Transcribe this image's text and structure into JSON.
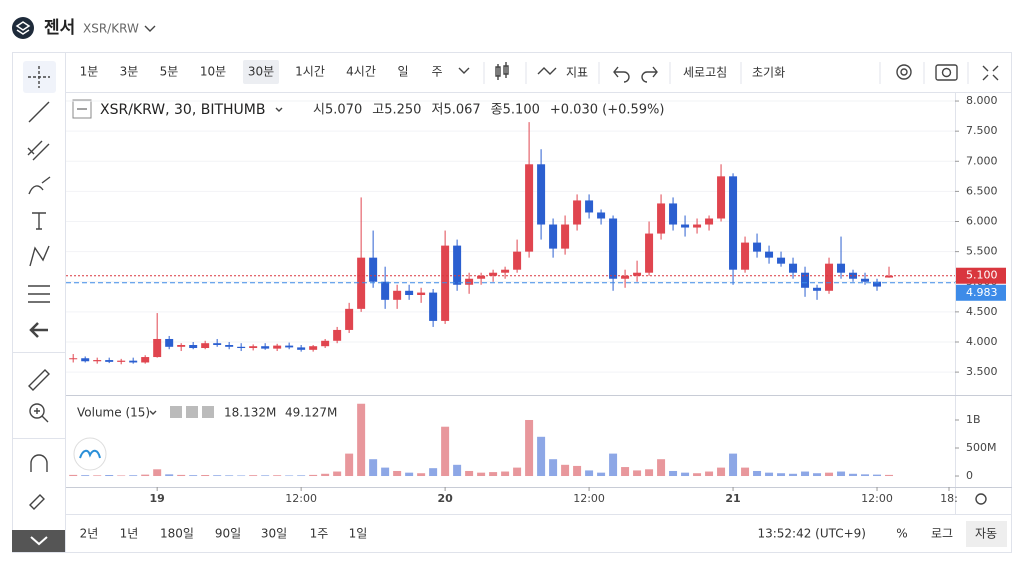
{
  "header": {
    "title": "젠서",
    "pair": "XSR/KRW"
  },
  "toolbar": {
    "intervals": [
      "1분",
      "3분",
      "5분",
      "10분",
      "30분",
      "1시간",
      "4시간",
      "일",
      "주"
    ],
    "selected": 4,
    "indicators": "지표",
    "refresh": "세로고침",
    "reset": "초기화"
  },
  "chart_data": {
    "type": "candlestick",
    "symbol": "XSR/KRW, 30, BITHUMB",
    "ohlc": {
      "open_label": "시",
      "open": 5.07,
      "open_text": "5.070",
      "high_label": "고",
      "high": 5.25,
      "high_text": "5.250",
      "low_label": "저",
      "low": 5.067,
      "low_text": "5.067",
      "close_label": "종",
      "close": 5.1,
      "close_text": "5.100",
      "change": "+0.030 (+0.59%)"
    },
    "up_color": "#e0454f",
    "down_color": "#2b5fd0",
    "volume_up_color": "#e8979c",
    "volume_down_color": "#8da7e6",
    "x": [
      -7,
      -6,
      -5,
      -4,
      -3,
      -2,
      -1,
      0,
      1,
      2,
      3,
      4,
      5,
      6,
      7,
      8,
      9,
      10,
      11,
      12,
      13,
      14,
      15,
      16,
      17,
      18,
      19,
      20,
      21,
      22,
      23,
      24,
      25,
      26,
      27,
      28,
      29,
      30,
      31,
      32,
      33,
      34,
      35,
      36,
      37,
      38,
      39,
      40,
      41,
      42,
      43,
      44,
      45,
      46,
      47,
      48,
      49,
      50,
      51,
      52,
      53,
      54,
      55,
      56,
      57,
      58,
      59,
      60,
      61
    ],
    "open": [
      3.72,
      3.73,
      3.68,
      3.7,
      3.67,
      3.69,
      3.66,
      3.75,
      4.05,
      3.92,
      3.95,
      3.9,
      3.98,
      3.95,
      3.92,
      3.9,
      3.93,
      3.89,
      3.94,
      3.91,
      3.87,
      3.93,
      4.02,
      4.2,
      4.55,
      5.4,
      5.0,
      4.7,
      4.85,
      4.78,
      4.82,
      4.35,
      5.6,
      4.95,
      5.05,
      5.1,
      5.15,
      5.2,
      5.5,
      6.95,
      5.95,
      5.55,
      5.95,
      6.35,
      6.15,
      6.05,
      5.05,
      5.1,
      5.15,
      5.8,
      6.3,
      5.95,
      5.9,
      5.95,
      6.05,
      6.75,
      5.2,
      5.65,
      5.5,
      5.4,
      5.3,
      5.15,
      4.9,
      4.85,
      5.3,
      5.15,
      5.05,
      5.0,
      5.07
    ],
    "high": [
      3.8,
      3.76,
      3.74,
      3.74,
      3.72,
      3.74,
      3.78,
      4.48,
      4.1,
      3.98,
      4.0,
      4.02,
      4.05,
      4.0,
      3.98,
      3.96,
      3.98,
      3.97,
      3.99,
      3.95,
      3.95,
      4.05,
      4.25,
      4.65,
      6.4,
      5.85,
      5.25,
      4.95,
      4.95,
      4.9,
      4.88,
      5.85,
      5.7,
      5.15,
      5.15,
      5.2,
      5.25,
      5.7,
      7.65,
      7.2,
      6.05,
      6.1,
      6.45,
      6.45,
      6.2,
      6.1,
      5.2,
      5.35,
      6.0,
      6.45,
      6.4,
      6.1,
      6.05,
      6.1,
      6.95,
      6.8,
      5.75,
      5.8,
      5.6,
      5.5,
      5.4,
      5.25,
      4.95,
      5.4,
      5.75,
      5.2,
      5.15,
      5.05,
      5.25
    ],
    "low": [
      3.66,
      3.66,
      3.64,
      3.65,
      3.63,
      3.64,
      3.64,
      3.74,
      3.88,
      3.85,
      3.88,
      3.88,
      3.92,
      3.88,
      3.85,
      3.86,
      3.87,
      3.85,
      3.88,
      3.84,
      3.84,
      3.9,
      3.98,
      4.15,
      4.5,
      4.9,
      4.55,
      4.55,
      4.7,
      4.65,
      4.25,
      4.3,
      4.85,
      4.8,
      4.95,
      5.0,
      5.05,
      5.15,
      5.4,
      5.7,
      5.4,
      5.45,
      5.85,
      6.05,
      5.95,
      4.85,
      4.9,
      5.0,
      5.1,
      5.7,
      5.85,
      5.75,
      5.8,
      5.85,
      6.0,
      4.95,
      5.15,
      5.4,
      5.3,
      5.25,
      5.05,
      4.75,
      4.7,
      4.8,
      5.05,
      5.0,
      4.95,
      4.85,
      5.067
    ],
    "close": [
      3.73,
      3.68,
      3.7,
      3.67,
      3.69,
      3.66,
      3.75,
      4.05,
      3.92,
      3.95,
      3.9,
      3.98,
      3.95,
      3.92,
      3.9,
      3.93,
      3.89,
      3.94,
      3.91,
      3.87,
      3.93,
      4.02,
      4.2,
      4.55,
      5.4,
      5.0,
      4.7,
      4.85,
      4.78,
      4.82,
      4.35,
      5.6,
      4.95,
      5.05,
      5.1,
      5.15,
      5.2,
      5.5,
      6.95,
      5.95,
      5.55,
      5.95,
      6.35,
      6.15,
      6.05,
      5.05,
      5.1,
      5.15,
      5.8,
      6.3,
      5.95,
      5.9,
      5.95,
      6.05,
      6.75,
      5.2,
      5.65,
      5.5,
      5.4,
      5.3,
      5.15,
      4.9,
      4.85,
      5.3,
      5.15,
      5.05,
      5.0,
      4.92,
      5.1
    ],
    "volume": [
      20,
      15,
      12,
      18,
      10,
      14,
      25,
      120,
      30,
      20,
      15,
      18,
      14,
      12,
      10,
      15,
      12,
      14,
      10,
      12,
      20,
      40,
      80,
      400,
      1290,
      300,
      150,
      90,
      60,
      50,
      140,
      880,
      200,
      90,
      60,
      70,
      80,
      150,
      1000,
      700,
      300,
      200,
      180,
      100,
      60,
      400,
      160,
      100,
      120,
      300,
      90,
      60,
      50,
      80,
      150,
      400,
      150,
      90,
      60,
      50,
      40,
      80,
      50,
      60,
      80,
      40,
      30,
      25,
      20
    ],
    "xlim": [
      -7.6,
      66.5
    ],
    "xticks": [
      {
        "value": 0,
        "label": "19"
      },
      {
        "value": 12,
        "label": "12:00"
      },
      {
        "value": 24,
        "label": "20"
      },
      {
        "value": 36,
        "label": "12:00"
      },
      {
        "value": 48,
        "label": "21"
      },
      {
        "value": 60,
        "label": "12:00"
      },
      {
        "value": 66,
        "label": "18:"
      }
    ],
    "ylim": [
      3.12,
      8.15
    ],
    "yticks": [
      {
        "value": 3.5,
        "label": "3.500"
      },
      {
        "value": 4,
        "label": "4.000"
      },
      {
        "value": 4.5,
        "label": "4.500"
      },
      {
        "value": 5,
        "label": "5.000"
      },
      {
        "value": 5.5,
        "label": "5.500"
      },
      {
        "value": 6,
        "label": "6.000"
      },
      {
        "value": 6.5,
        "label": "6.500"
      },
      {
        "value": 7,
        "label": "7.000"
      },
      {
        "value": 7.5,
        "label": "7.500"
      },
      {
        "value": 8,
        "label": "8.000"
      }
    ],
    "price_lines": [
      {
        "value": 5.1,
        "label": "5.100",
        "color": "#d9363e"
      },
      {
        "value": 4.983,
        "label": "4.983",
        "color": "#3d8be8"
      }
    ],
    "volume_title": "Volume (15)",
    "volume_up_text": "18.132M",
    "volume_down_text": "49.127M",
    "vlim": [
      -196,
      1446
    ],
    "vticks": [
      {
        "value": 0,
        "label": "0"
      },
      {
        "value": 500,
        "label": "500M"
      },
      {
        "value": 1000,
        "label": "1B"
      }
    ]
  },
  "bottom_bar": {
    "ranges": [
      "2년",
      "1년",
      "180일",
      "90일",
      "30일",
      "1주",
      "1일"
    ],
    "time": "13:52:42 (UTC+9)",
    "percent": "%",
    "log": "로그",
    "auto": "자동"
  }
}
